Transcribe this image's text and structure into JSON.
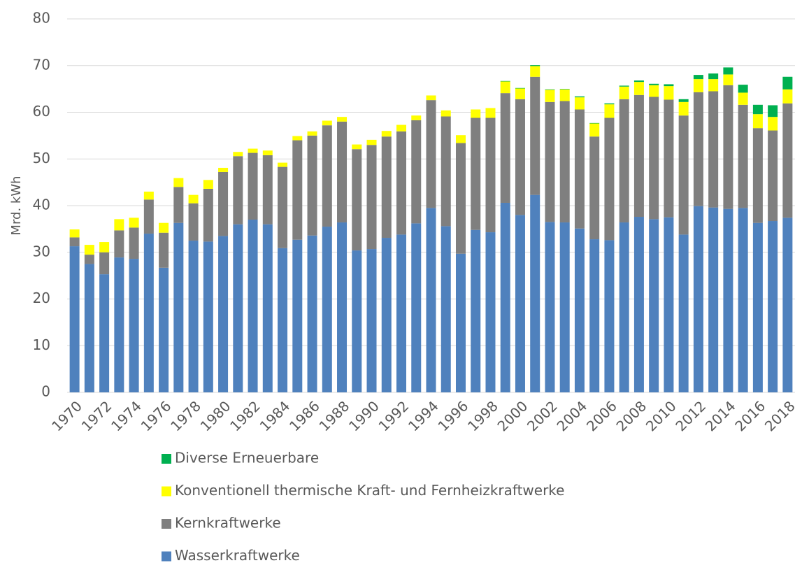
{
  "chart_data": {
    "type": "stacked_bar",
    "y_label": "Mrd. kWh",
    "categories": [
      "1970",
      null,
      "1972",
      null,
      "1974",
      null,
      "1976",
      null,
      "1978",
      null,
      "1980",
      null,
      "1982",
      null,
      "1984",
      null,
      "1986",
      null,
      "1988",
      null,
      "1990",
      null,
      "1992",
      null,
      "1994",
      null,
      "1996",
      null,
      "1998",
      null,
      "2000",
      null,
      "2002",
      null,
      "2004",
      null,
      "2006",
      null,
      "2008",
      null,
      "2010",
      null,
      "2012",
      null,
      "2014",
      null,
      "2016",
      null,
      "2018"
    ],
    "series": [
      {
        "name": "Wasserkraftwerke",
        "color": "#4f81bd",
        "values": [
          31.3,
          27.5,
          25.3,
          28.9,
          28.6,
          34.0,
          26.7,
          36.3,
          32.5,
          32.3,
          33.5,
          36.0,
          37.0,
          36.0,
          30.9,
          32.7,
          33.6,
          35.5,
          36.4,
          30.4,
          30.7,
          33.1,
          33.8,
          36.2,
          39.5,
          35.6,
          29.7,
          34.8,
          34.3,
          40.6,
          38.0,
          42.3,
          36.5,
          36.4,
          35.1,
          32.8,
          32.6,
          36.4,
          37.6,
          37.1,
          37.5,
          33.8,
          39.9,
          39.6,
          39.3,
          39.5,
          36.3,
          36.7,
          37.4
        ]
      },
      {
        "name": "Kernkraftwerke",
        "color": "#7f7f7f",
        "values": [
          1.9,
          2.0,
          4.7,
          5.8,
          6.7,
          7.3,
          7.5,
          7.7,
          8.0,
          11.3,
          13.7,
          14.6,
          14.3,
          14.8,
          17.4,
          21.3,
          21.4,
          21.7,
          21.6,
          21.7,
          22.3,
          21.7,
          22.1,
          22.1,
          23.1,
          23.5,
          23.7,
          24.0,
          24.5,
          23.5,
          24.8,
          25.3,
          25.7,
          26.0,
          25.5,
          22.0,
          26.2,
          26.4,
          26.1,
          26.2,
          25.2,
          25.5,
          24.4,
          24.9,
          26.5,
          22.1,
          20.3,
          19.4,
          24.5
        ]
      },
      {
        "name": "Konventionell thermische Kraft- und Fernheizkraftwerke",
        "color": "#ffff00",
        "values": [
          1.7,
          2.1,
          2.2,
          2.4,
          2.1,
          1.7,
          2.1,
          1.9,
          1.8,
          1.9,
          0.9,
          0.9,
          0.9,
          1.0,
          0.9,
          0.9,
          0.9,
          1.0,
          1.0,
          1.0,
          1.1,
          1.2,
          1.4,
          1.0,
          1.0,
          1.3,
          1.7,
          1.8,
          2.1,
          2.5,
          2.3,
          2.3,
          2.6,
          2.5,
          2.6,
          2.8,
          2.9,
          2.7,
          2.8,
          2.5,
          2.9,
          2.9,
          2.8,
          2.6,
          2.3,
          2.6,
          3.0,
          2.9,
          3.0
        ]
      },
      {
        "name": "Diverse Erneuerbare",
        "color": "#00b050",
        "values": [
          0,
          0,
          0,
          0,
          0,
          0,
          0,
          0,
          0,
          0,
          0,
          0,
          0,
          0,
          0,
          0,
          0,
          0,
          0,
          0,
          0,
          0,
          0,
          0,
          0,
          0,
          0,
          0,
          0,
          0.1,
          0.1,
          0.2,
          0.1,
          0.1,
          0.2,
          0.1,
          0.2,
          0.2,
          0.3,
          0.3,
          0.4,
          0.6,
          0.9,
          1.2,
          1.5,
          1.7,
          2.0,
          2.5,
          2.7
        ]
      }
    ],
    "ylim": [
      0,
      80
    ],
    "yticks": [
      0,
      10,
      20,
      30,
      40,
      50,
      60,
      70,
      80
    ],
    "grid": true
  }
}
